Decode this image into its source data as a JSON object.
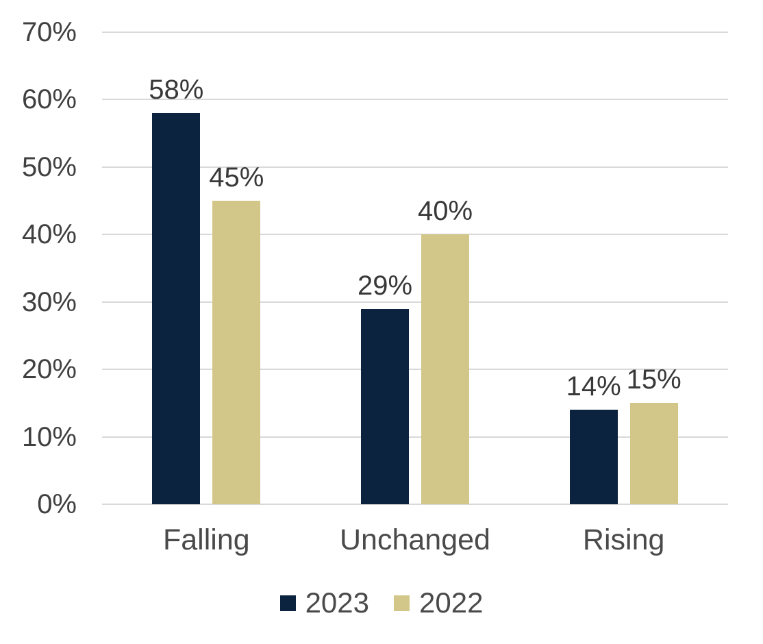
{
  "chart_data": {
    "type": "bar",
    "title": "",
    "xlabel": "",
    "ylabel": "",
    "categories": [
      "Falling",
      "Unchanged",
      "Rising"
    ],
    "series": [
      {
        "name": "2023",
        "color": "#0c2340",
        "values": [
          58,
          29,
          14
        ],
        "labels": [
          "58%",
          "29%",
          "14%"
        ]
      },
      {
        "name": "2022",
        "color": "#d3c689",
        "values": [
          45,
          40,
          15
        ],
        "labels": [
          "45%",
          "40%",
          "15%"
        ]
      }
    ],
    "value_suffix": "%",
    "ylim": [
      0,
      70
    ],
    "ytick_step": 10,
    "ytick_labels": [
      "0%",
      "10%",
      "20%",
      "30%",
      "40%",
      "50%",
      "60%",
      "70%"
    ],
    "grid": true,
    "legend_position": "bottom",
    "gridline_color": "#d9d9d9",
    "axis_text_color": "#404040",
    "data_label_color": "#383838",
    "background_color": "#ffffff"
  }
}
